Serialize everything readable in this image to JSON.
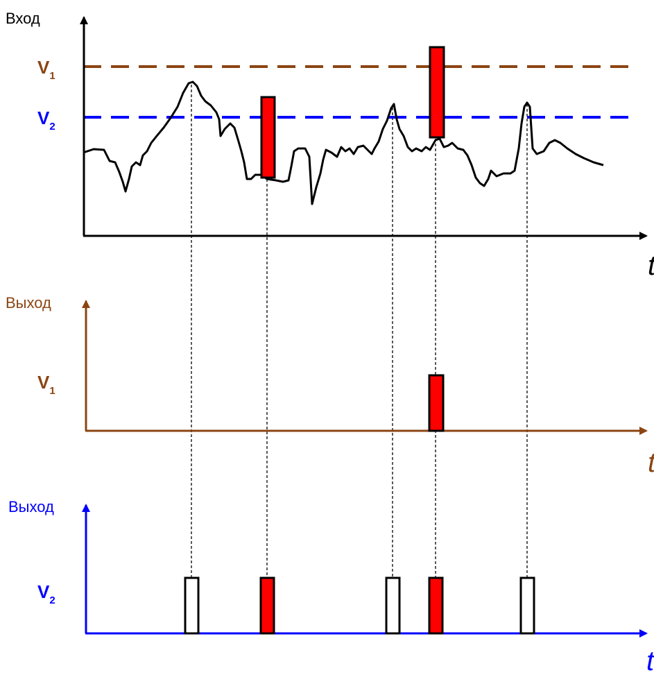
{
  "colors": {
    "input": "#000000",
    "output_v1": "#8b4513",
    "output_v2": "#0000ff",
    "threshold_v1": "#8b4513",
    "threshold_v2": "#0000ff",
    "pulse_fill": "#ff0000",
    "pulse_empty": "#ffffff",
    "guide": "#000000"
  },
  "panel_input": {
    "y_label": "Вход",
    "x_label": "t",
    "threshold_v1": {
      "name": "V",
      "sub": "1"
    },
    "threshold_v2": {
      "name": "V",
      "sub": "2"
    }
  },
  "panel_output_v1": {
    "y_label": "Выход",
    "x_label": "t",
    "level": {
      "name": "V",
      "sub": "1"
    }
  },
  "panel_output_v2": {
    "y_label": "Выход",
    "x_label": "t",
    "level": {
      "name": "V",
      "sub": "2"
    }
  }
}
